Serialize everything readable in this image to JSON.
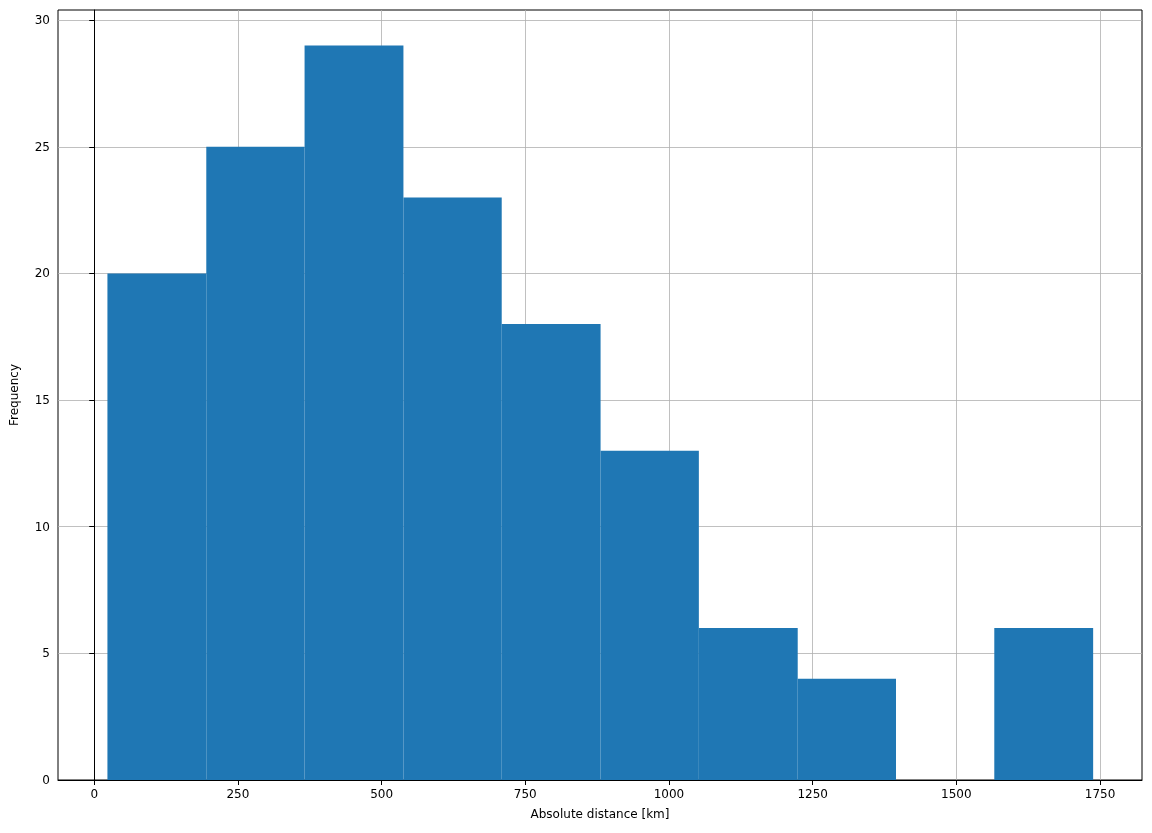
{
  "chart_data": {
    "type": "histogram",
    "xlabel": "Absolute distance [km]",
    "ylabel": "Frequency",
    "bins": [
      23,
      195,
      366,
      538,
      709,
      881,
      1052,
      1224,
      1395,
      1566,
      1738
    ],
    "values": [
      20,
      25,
      29,
      23,
      18,
      13,
      6,
      4,
      0,
      6
    ],
    "color": "#1f77b4",
    "xlim": [
      -63,
      1823
    ],
    "xticks": [
      0,
      250,
      500,
      750,
      1000,
      1250,
      1500,
      1750
    ],
    "ylim": [
      0,
      30.4
    ],
    "yticks": [
      0,
      5,
      10,
      15,
      20,
      25,
      30
    ],
    "grid": true
  }
}
